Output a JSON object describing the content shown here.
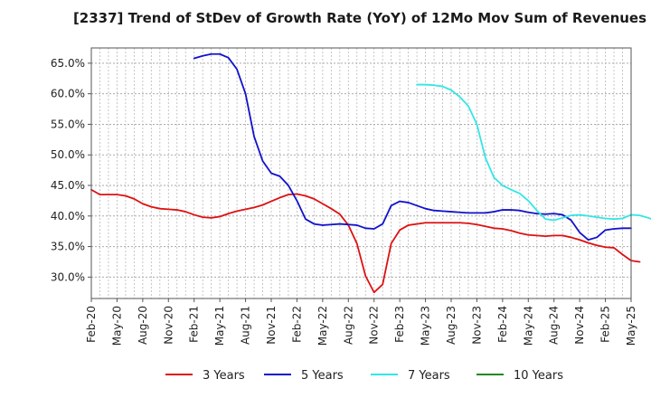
{
  "chart_data": {
    "type": "line",
    "title": "[2337]  Trend of StDev of Growth Rate (YoY) of 12Mo Mov Sum of Revenues",
    "xlabel": "",
    "ylabel": "",
    "x_ticks": [
      "Feb-20",
      "May-20",
      "Aug-20",
      "Nov-20",
      "Feb-21",
      "May-21",
      "Aug-21",
      "Nov-21",
      "Feb-22",
      "May-22",
      "Aug-22",
      "Nov-22",
      "Feb-23",
      "May-23",
      "Aug-23",
      "Nov-23",
      "Feb-24",
      "May-24",
      "Aug-24",
      "Nov-24",
      "Feb-25",
      "May-25"
    ],
    "y_ticks": [
      30,
      35,
      40,
      45,
      50,
      55,
      60,
      65
    ],
    "y_tick_labels": [
      "30.0%",
      "35.0%",
      "40.0%",
      "45.0%",
      "50.0%",
      "55.0%",
      "60.0%",
      "65.0%"
    ],
    "ylim": [
      26.5,
      67.5
    ],
    "grid": true,
    "legend_position": "bottom",
    "series": [
      {
        "name": "3 Years",
        "color": "#dd1111",
        "start_index": 0,
        "values": [
          44.3,
          43.5,
          43.5,
          43.5,
          43.3,
          42.8,
          42.0,
          41.5,
          41.2,
          41.1,
          41.0,
          40.7,
          40.2,
          39.8,
          39.7,
          39.9,
          40.4,
          40.8,
          41.1,
          41.4,
          41.8,
          42.4,
          43.0,
          43.5,
          43.6,
          43.3,
          42.8,
          42.0,
          41.2,
          40.3,
          38.5,
          35.5,
          30.2,
          27.5,
          28.8,
          35.5,
          37.7,
          38.5,
          38.7,
          38.9,
          38.9,
          38.9,
          38.9,
          38.9,
          38.8,
          38.6,
          38.3,
          38.0,
          37.9,
          37.6,
          37.2,
          36.9,
          36.8,
          36.7,
          36.8,
          36.8,
          36.5,
          36.1,
          35.6,
          35.2,
          34.9,
          34.8,
          33.7,
          32.7,
          32.5
        ]
      },
      {
        "name": "5 Years",
        "color": "#1111cc",
        "start_index": 12,
        "values": [
          65.8,
          66.2,
          66.5,
          66.5,
          65.9,
          64.0,
          60.0,
          53.0,
          49.0,
          47.0,
          46.5,
          45.0,
          42.5,
          39.5,
          38.7,
          38.5,
          38.6,
          38.7,
          38.6,
          38.5,
          38.0,
          37.9,
          38.7,
          41.7,
          42.4,
          42.2,
          41.7,
          41.2,
          40.9,
          40.8,
          40.7,
          40.6,
          40.5,
          40.5,
          40.5,
          40.7,
          41.0,
          41.0,
          40.9,
          40.6,
          40.4,
          40.3,
          40.4,
          40.2,
          39.3,
          37.3,
          36.1,
          36.5,
          37.7,
          37.9,
          38.0,
          38.0
        ]
      },
      {
        "name": "7 Years",
        "color": "#33e6e6",
        "start_index": 38,
        "values": [
          61.5,
          61.5,
          61.4,
          61.2,
          60.6,
          59.5,
          58.0,
          55.0,
          49.5,
          46.3,
          45.0,
          44.3,
          43.7,
          42.5,
          40.9,
          39.5,
          39.3,
          39.7,
          40.1,
          40.2,
          40.0,
          39.8,
          39.6,
          39.5,
          39.6,
          40.2,
          40.1,
          39.7,
          39.2
        ]
      },
      {
        "name": "10 Years",
        "color": "#228822",
        "start_index": 0,
        "values": []
      }
    ]
  }
}
